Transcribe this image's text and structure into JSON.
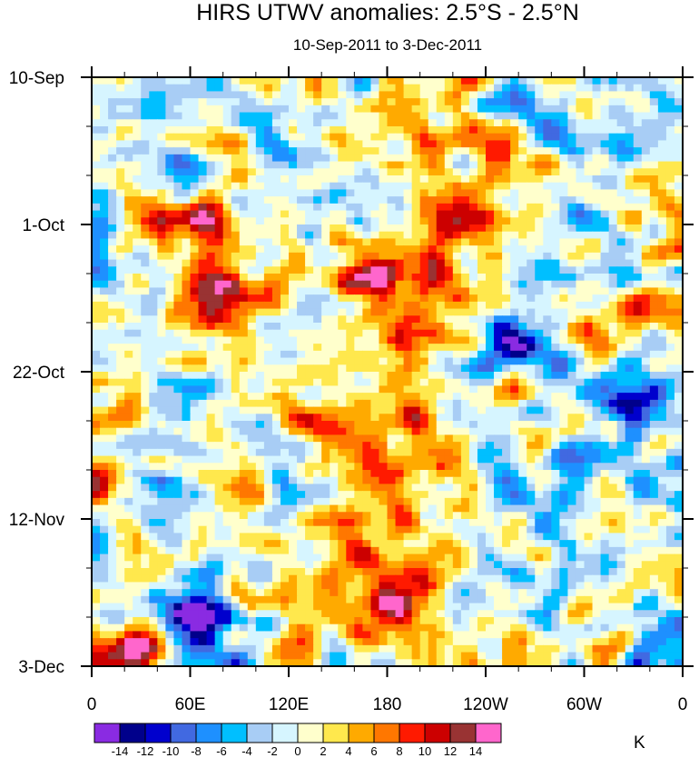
{
  "chart_data": {
    "type": "heatmap",
    "title": "HIRS UTWV anomalies: 2.5°S - 2.5°N",
    "subtitle": "10-Sep-2011 to 3-Dec-2011",
    "x_tick_labels": [
      "0",
      "60E",
      "120E",
      "180",
      "120W",
      "60W",
      "0"
    ],
    "x_range_deg": [
      0,
      360
    ],
    "y_tick_labels": [
      "10-Sep",
      "1-Oct",
      "22-Oct",
      "12-Nov",
      "3-Dec"
    ],
    "y_range_days": [
      0,
      84
    ],
    "colorbar": {
      "unit": "K",
      "levels": [
        "-14",
        "-12",
        "-10",
        "-8",
        "-6",
        "-4",
        "-2",
        "0",
        "2",
        "4",
        "6",
        "8",
        "10",
        "12",
        "14"
      ],
      "colors": [
        "#8a2be2",
        "#00008b",
        "#0000cd",
        "#4169e1",
        "#1e90ff",
        "#00bfff",
        "#a8cdf5",
        "#d6f5ff",
        "#ffffcc",
        "#ffe84d",
        "#ffaa00",
        "#ff7700",
        "#ff1a00",
        "#cc0000",
        "#993333",
        "#ff66cc"
      ]
    },
    "anomaly_features": [
      {
        "label": "positive",
        "lon": 170,
        "day": 28,
        "value": 10
      },
      {
        "label": "positive",
        "lon": 70,
        "day": 31,
        "value": 12
      },
      {
        "label": "positive",
        "lon": 180,
        "day": 74,
        "value": 12
      },
      {
        "label": "positive",
        "lon": 225,
        "day": 20,
        "value": 8
      },
      {
        "label": "positive",
        "lon": 60,
        "day": 21,
        "value": 10
      },
      {
        "label": "positive",
        "lon": 150,
        "day": 50,
        "value": 8
      },
      {
        "label": "positive",
        "lon": 15,
        "day": 82,
        "value": 10
      },
      {
        "label": "negative",
        "lon": 255,
        "day": 37,
        "value": -12
      },
      {
        "label": "negative",
        "lon": 60,
        "day": 77,
        "value": -12
      },
      {
        "label": "negative",
        "lon": 330,
        "day": 46,
        "value": -12
      },
      {
        "label": "negative",
        "lon": 260,
        "day": 4,
        "value": -8
      },
      {
        "label": "negative",
        "lon": 40,
        "day": 2,
        "value": -8
      }
    ]
  }
}
